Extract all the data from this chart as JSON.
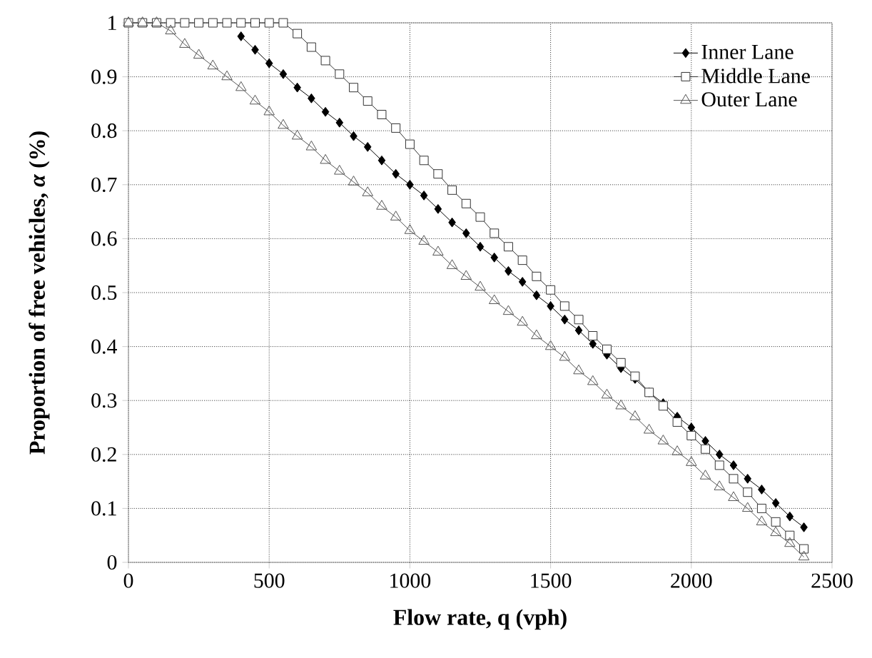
{
  "chart_data": {
    "type": "line",
    "xlabel": "Flow rate, q (vph)",
    "ylabel": "Proportion of free vehicles, *α* (%)",
    "xlim": [
      0,
      2500
    ],
    "xticks": [
      0,
      500,
      1000,
      1500,
      2000,
      2500
    ],
    "ylim": [
      0,
      1
    ],
    "yticks": [
      0,
      0.1,
      0.2,
      0.3,
      0.4,
      0.5,
      0.6,
      0.7,
      0.8,
      0.9,
      1
    ],
    "grid": true,
    "legend": "top right",
    "series": [
      {
        "name": "Inner Lane",
        "color": "#000000",
        "marker": "diamond",
        "x": [
          400,
          450,
          500,
          550,
          600,
          650,
          700,
          750,
          800,
          850,
          900,
          950,
          1000,
          1050,
          1100,
          1150,
          1200,
          1250,
          1300,
          1350,
          1400,
          1450,
          1500,
          1550,
          1600,
          1650,
          1700,
          1750,
          1800,
          1850,
          1900,
          1950,
          2000,
          2050,
          2100,
          2150,
          2200,
          2250,
          2300,
          2350,
          2400
        ],
        "values": [
          0.975,
          0.95,
          0.925,
          0.905,
          0.88,
          0.86,
          0.835,
          0.815,
          0.79,
          0.77,
          0.745,
          0.72,
          0.7,
          0.68,
          0.655,
          0.63,
          0.61,
          0.585,
          0.565,
          0.54,
          0.52,
          0.495,
          0.475,
          0.45,
          0.43,
          0.405,
          0.385,
          0.36,
          0.34,
          0.315,
          0.295,
          0.27,
          0.25,
          0.225,
          0.2,
          0.18,
          0.155,
          0.135,
          0.11,
          0.085,
          0.065
        ]
      },
      {
        "name": "Middle Lane",
        "color": "#333333",
        "marker": "square",
        "x": [
          0,
          50,
          100,
          150,
          200,
          250,
          300,
          350,
          400,
          450,
          500,
          550,
          600,
          650,
          700,
          750,
          800,
          850,
          900,
          950,
          1000,
          1050,
          1100,
          1150,
          1200,
          1250,
          1300,
          1350,
          1400,
          1450,
          1500,
          1550,
          1600,
          1650,
          1700,
          1750,
          1800,
          1850,
          1900,
          1950,
          2000,
          2050,
          2100,
          2150,
          2200,
          2250,
          2300,
          2350,
          2400
        ],
        "values": [
          1,
          1,
          1,
          1,
          1,
          1,
          1,
          1,
          1,
          1,
          1,
          1,
          0.98,
          0.955,
          0.93,
          0.905,
          0.88,
          0.855,
          0.83,
          0.805,
          0.775,
          0.745,
          0.72,
          0.69,
          0.665,
          0.64,
          0.61,
          0.585,
          0.56,
          0.53,
          0.505,
          0.475,
          0.45,
          0.42,
          0.395,
          0.37,
          0.345,
          0.315,
          0.29,
          0.26,
          0.235,
          0.21,
          0.18,
          0.155,
          0.13,
          0.1,
          0.075,
          0.05,
          0.025
        ]
      },
      {
        "name": "Outer Lane",
        "color": "#555555",
        "marker": "triangle",
        "x": [
          0,
          50,
          100,
          150,
          200,
          250,
          300,
          350,
          400,
          450,
          500,
          550,
          600,
          650,
          700,
          750,
          800,
          850,
          900,
          950,
          1000,
          1050,
          1100,
          1150,
          1200,
          1250,
          1300,
          1350,
          1400,
          1450,
          1500,
          1550,
          1600,
          1650,
          1700,
          1750,
          1800,
          1850,
          1900,
          1950,
          2000,
          2050,
          2100,
          2150,
          2200,
          2250,
          2300,
          2350,
          2400
        ],
        "values": [
          1,
          1,
          1,
          0.985,
          0.96,
          0.94,
          0.92,
          0.9,
          0.88,
          0.855,
          0.835,
          0.81,
          0.79,
          0.77,
          0.745,
          0.725,
          0.705,
          0.685,
          0.66,
          0.64,
          0.615,
          0.595,
          0.575,
          0.55,
          0.53,
          0.51,
          0.485,
          0.465,
          0.445,
          0.42,
          0.4,
          0.38,
          0.355,
          0.335,
          0.31,
          0.29,
          0.27,
          0.245,
          0.225,
          0.205,
          0.185,
          0.16,
          0.14,
          0.12,
          0.1,
          0.075,
          0.055,
          0.035,
          0.01
        ]
      }
    ]
  }
}
